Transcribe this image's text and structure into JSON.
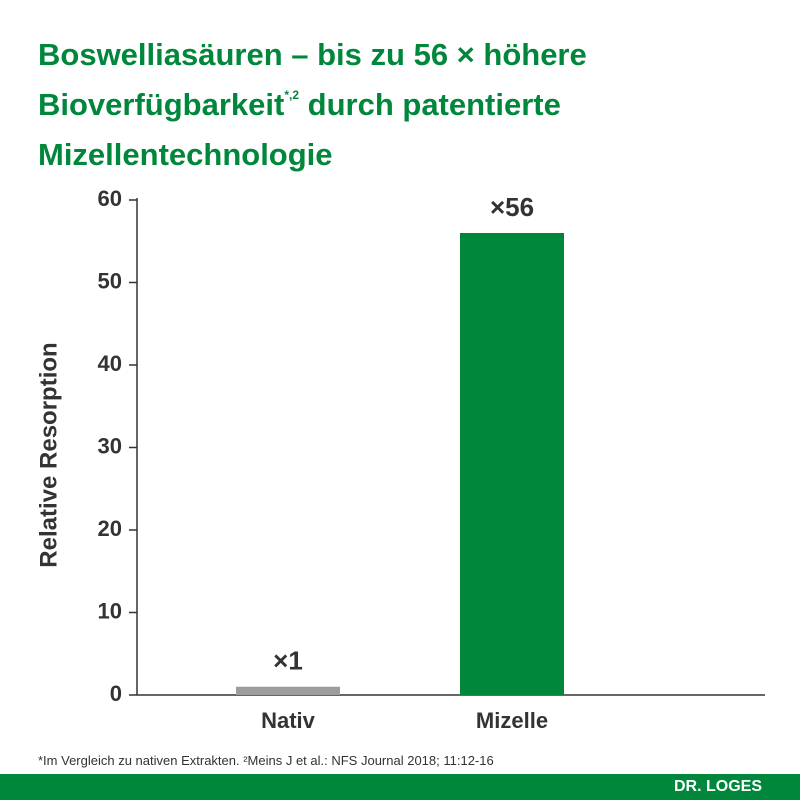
{
  "chart_data": {
    "type": "bar",
    "title": "Boswelliasäuren – bis zu 56 × höhere Bioverfügbarkeit",
    "title_superscript": "*,2",
    "title_continued": "durch patentierte Mizellentechnologie",
    "y_label": "Relative Resorption",
    "categories": [
      "Nativ",
      "Mizelle"
    ],
    "values": [
      1,
      56
    ],
    "value_labels": [
      "×1",
      "×56"
    ],
    "colors": [
      "#9d9d9c",
      "#00873c"
    ],
    "ylim": [
      0,
      60
    ],
    "yticks": [
      0,
      10,
      20,
      30,
      40,
      50,
      60
    ],
    "footnote": "*Im Vergleich zu nativen Extrakten. ²Meins J et al.: NFS Journal 2018; 11:12-16",
    "brand": "DR. LOGES"
  }
}
